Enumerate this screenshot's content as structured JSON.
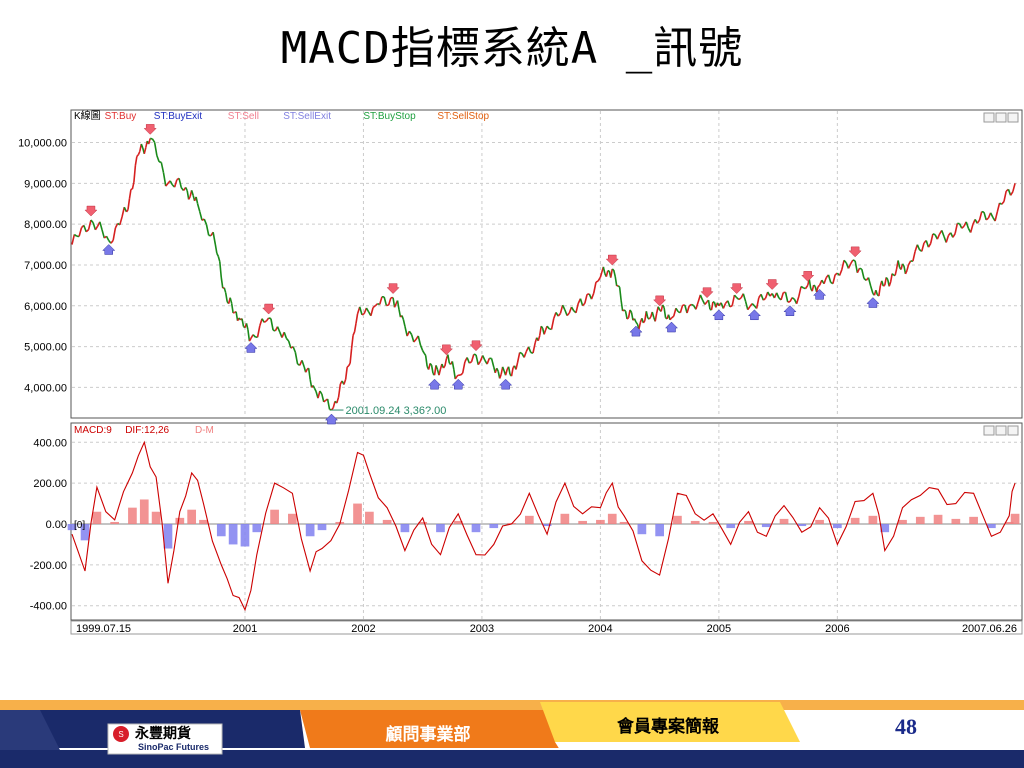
{
  "slide": {
    "title": "MACD指標系統A _訊號",
    "page_number": "48"
  },
  "footer": {
    "company_cn": "永豐期貨",
    "company_en": "SinoPac Futures",
    "department": "顧問事業部",
    "report": "會員專案簡報"
  },
  "colors": {
    "price_up": "#d62020",
    "price_down": "#1a8a1a",
    "buy_marker": "#f06070",
    "sell_marker": "#7878e8",
    "macd_line": "#cc0000",
    "hist_pos": "#f08080",
    "hist_neg": "#8080f0",
    "annotation": "#2a8a6a",
    "footer_orange": "#f07a1a",
    "footer_navy": "#1a2a6a"
  },
  "chart_data": [
    {
      "type": "line",
      "panel": "price",
      "legend": [
        {
          "label": "K線圖",
          "color": "#000000"
        },
        {
          "label": "ST:Buy",
          "color": "#e03030"
        },
        {
          "label": "ST:BuyExit",
          "color": "#2030c0"
        },
        {
          "label": "ST:Sell",
          "color": "#f08090"
        },
        {
          "label": "ST:SellExit",
          "color": "#8080e0"
        },
        {
          "label": "ST:BuyStop",
          "color": "#20a040"
        },
        {
          "label": "ST:SellStop",
          "color": "#e06010"
        }
      ],
      "y_ticks": [
        "10,000.00",
        "9,000.00",
        "8,000.00",
        "7,000.00",
        "6,000.00",
        "5,000.00",
        "4,000.00"
      ],
      "y_tick_values": [
        10000,
        9000,
        8000,
        7000,
        6000,
        5000,
        4000
      ],
      "ylim": [
        3300,
        10600
      ],
      "x": [
        1999.54,
        1999.7,
        1999.85,
        2000.0,
        2000.1,
        2000.2,
        2000.35,
        2000.5,
        2000.6,
        2000.75,
        2000.85,
        2000.95,
        2001.05,
        2001.2,
        2001.35,
        2001.5,
        2001.6,
        2001.73,
        2001.85,
        2001.95,
        2002.1,
        2002.25,
        2002.35,
        2002.5,
        2002.6,
        2002.7,
        2002.8,
        2002.95,
        2003.1,
        2003.2,
        2003.3,
        2003.45,
        2003.55,
        2003.7,
        2003.85,
        2004.0,
        2004.1,
        2004.2,
        2004.3,
        2004.4,
        2004.5,
        2004.6,
        2004.75,
        2004.9,
        2005.0,
        2005.15,
        2005.3,
        2005.45,
        2005.6,
        2005.75,
        2005.85,
        2006.0,
        2006.15,
        2006.3,
        2006.4,
        2006.5,
        2006.6,
        2006.75,
        2006.9,
        2007.05,
        2007.2,
        2007.35,
        2007.5
      ],
      "close": [
        7500,
        8100,
        7600,
        8300,
        9700,
        10100,
        9000,
        8900,
        8500,
        7500,
        6100,
        5700,
        5200,
        5700,
        5200,
        4500,
        3900,
        3446,
        4200,
        5800,
        6000,
        6200,
        5500,
        4900,
        4300,
        4700,
        4300,
        4800,
        4500,
        4300,
        4600,
        5100,
        5500,
        5900,
        6000,
        6700,
        6900,
        5900,
        5600,
        5700,
        5900,
        5700,
        6000,
        6100,
        6000,
        6200,
        6000,
        6300,
        6100,
        6500,
        6500,
        6800,
        7100,
        6300,
        6500,
        6900,
        7000,
        7600,
        7700,
        7900,
        8100,
        8300,
        9000
      ],
      "annotation": {
        "text": "2001.09.24  3,36?.00",
        "x": 2001.73,
        "y": 3446
      }
    },
    {
      "type": "line",
      "panel": "macd",
      "legend": [
        {
          "label": "MACD:9",
          "color": "#cc0000"
        },
        {
          "label": "DIF:12,26",
          "color": "#cc0000"
        },
        {
          "label": "D-M",
          "color": "#f08080"
        }
      ],
      "y_ticks": [
        "400.00",
        "200.00",
        "0.00",
        "-200.00",
        "-400.00"
      ],
      "y_tick_values": [
        400,
        200,
        0,
        -200,
        -400
      ],
      "ylim": [
        -460,
        460
      ],
      "zero_marker": "[0]",
      "x": [
        1999.54,
        1999.65,
        1999.75,
        1999.9,
        2000.05,
        2000.15,
        2000.25,
        2000.35,
        2000.45,
        2000.55,
        2000.65,
        2000.8,
        2000.9,
        2001.0,
        2001.1,
        2001.25,
        2001.4,
        2001.55,
        2001.65,
        2001.8,
        2001.95,
        2002.05,
        2002.2,
        2002.35,
        2002.5,
        2002.65,
        2002.8,
        2002.95,
        2003.1,
        2003.25,
        2003.4,
        2003.55,
        2003.7,
        2003.85,
        2004.0,
        2004.1,
        2004.2,
        2004.35,
        2004.5,
        2004.65,
        2004.8,
        2004.95,
        2005.1,
        2005.25,
        2005.4,
        2005.55,
        2005.7,
        2005.85,
        2006.0,
        2006.15,
        2006.3,
        2006.4,
        2006.55,
        2006.7,
        2006.85,
        2007.0,
        2007.15,
        2007.3,
        2007.45,
        2007.5
      ],
      "dif": [
        -50,
        -230,
        180,
        20,
        250,
        400,
        230,
        -290,
        60,
        250,
        100,
        -200,
        -350,
        -420,
        -150,
        200,
        150,
        -230,
        -120,
        0,
        350,
        250,
        80,
        -130,
        30,
        -150,
        50,
        -150,
        -100,
        0,
        150,
        -50,
        200,
        50,
        80,
        200,
        40,
        -180,
        -250,
        150,
        50,
        50,
        -100,
        60,
        -60,
        90,
        -40,
        80,
        -100,
        110,
        150,
        -130,
        80,
        140,
        170,
        100,
        150,
        -60,
        40,
        200
      ],
      "histogram": [
        -30,
        -80,
        60,
        10,
        80,
        120,
        60,
        -120,
        30,
        70,
        20,
        -60,
        -100,
        -110,
        -40,
        70,
        50,
        -60,
        -30,
        10,
        100,
        60,
        20,
        -40,
        10,
        -40,
        15,
        -40,
        -20,
        5,
        40,
        -10,
        50,
        15,
        20,
        50,
        10,
        -50,
        -60,
        40,
        15,
        10,
        -20,
        15,
        -15,
        25,
        -10,
        20,
        -20,
        30,
        40,
        -40,
        20,
        35,
        45,
        25,
        35,
        -20,
        10,
        50
      ]
    }
  ],
  "x_axis": {
    "labels": [
      "1999.07.15",
      "2001",
      "2002",
      "2003",
      "2004",
      "2005",
      "2006",
      "2007.06.26"
    ],
    "values": [
      1999.54,
      2001.0,
      2002.0,
      2003.0,
      2004.0,
      2005.0,
      2006.0,
      2007.48
    ],
    "range": [
      1999.54,
      2007.55
    ]
  }
}
